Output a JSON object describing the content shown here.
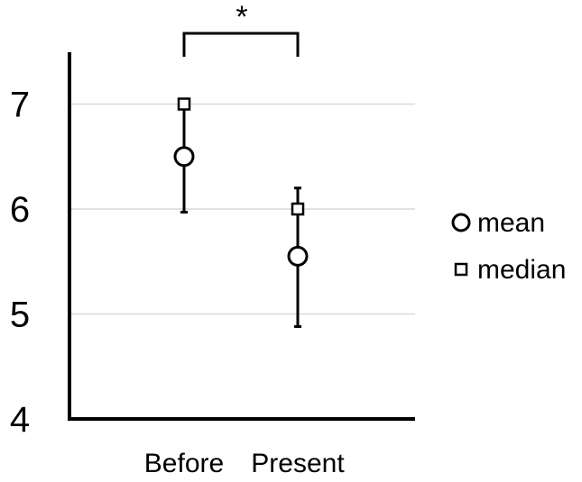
{
  "chart_data": {
    "type": "scatter",
    "categories": [
      "Before",
      "Present"
    ],
    "ylim": [
      4,
      7.5
    ],
    "yticks": [
      4,
      5,
      6,
      7
    ],
    "grid": true,
    "legend_position": "right",
    "series": [
      {
        "name": "mean",
        "marker": "circle",
        "values": [
          6.5,
          5.55
        ]
      },
      {
        "name": "median",
        "marker": "square",
        "values": [
          7.0,
          6.0
        ]
      }
    ],
    "error_bars": [
      {
        "category": "Before",
        "low": 5.97,
        "high": 7.0
      },
      {
        "category": "Present",
        "low": 4.88,
        "high": 6.2
      }
    ],
    "significance": {
      "from": "Before",
      "to": "Present",
      "label": "*"
    }
  }
}
